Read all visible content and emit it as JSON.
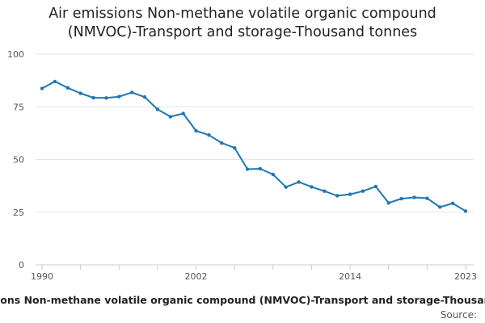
{
  "chart_data": {
    "type": "line",
    "title_line1": "Air emissions Non-methane volatile organic compound",
    "title_line2": "(NMVOC)-Transport and storage-Thousand tonnes",
    "xlabel": "Air emissions Non-methane volatile organic compound (NMVOC)-Transport and storage-Thousand tonnes",
    "ylabel": "",
    "source_label": "Source:",
    "x": [
      1990,
      1991,
      1992,
      1993,
      1994,
      1995,
      1996,
      1997,
      1998,
      1999,
      2000,
      2001,
      2002,
      2003,
      2004,
      2005,
      2006,
      2007,
      2008,
      2009,
      2010,
      2011,
      2012,
      2013,
      2014,
      2015,
      2016,
      2017,
      2018,
      2019,
      2020,
      2021,
      2022,
      2023
    ],
    "series": [
      {
        "name": "NMVOC Transport and storage",
        "color": "#1f77b4",
        "values": [
          83.7,
          87,
          84,
          81.4,
          79.3,
          79.2,
          79.8,
          81.8,
          79.6,
          73.8,
          70.3,
          71.8,
          63.6,
          61.6,
          57.8,
          55.5,
          45.4,
          45.6,
          42.9,
          36.9,
          39.3,
          37,
          35,
          32.8,
          33.5,
          35,
          37.2,
          29.4,
          31.4,
          32,
          31.6,
          27.4,
          29.2,
          25.5
        ]
      }
    ],
    "ylim": [
      0,
      100
    ],
    "yticks": [
      0,
      25,
      50,
      75,
      100
    ],
    "xlim": [
      1990,
      2023
    ],
    "xtick_labels": [
      1990,
      2002,
      2014,
      2023
    ],
    "xtick_marks": [
      1990,
      1993,
      1996,
      1999,
      2002,
      2005,
      2008,
      2011,
      2014,
      2017,
      2020,
      2023
    ],
    "grid": true
  }
}
